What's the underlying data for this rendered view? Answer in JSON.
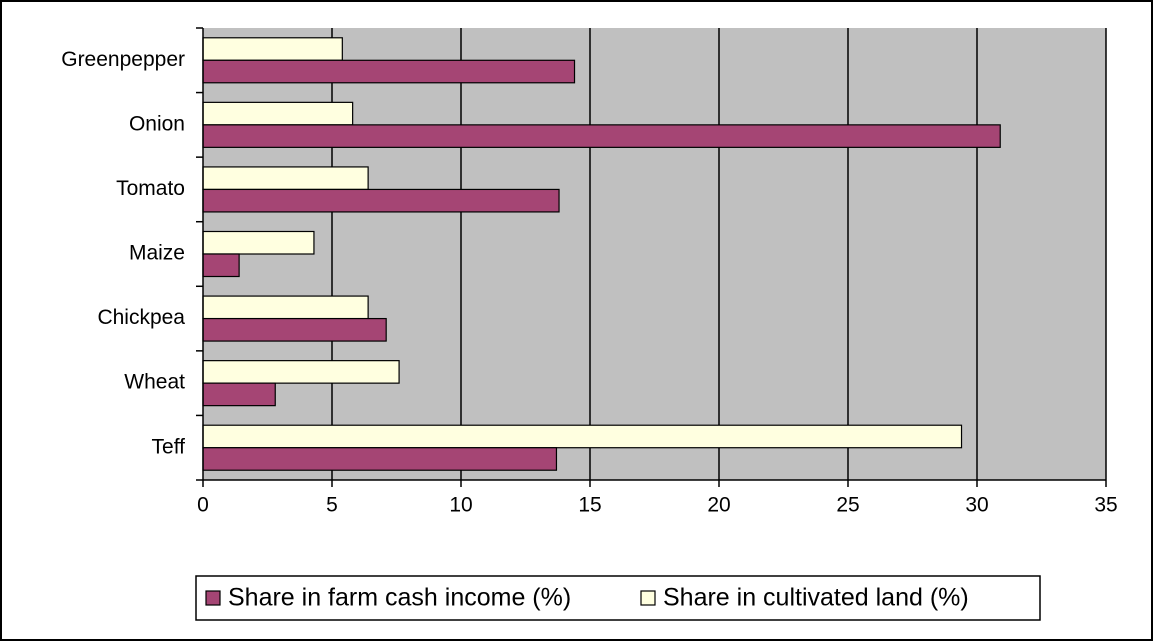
{
  "chart_data": {
    "type": "hbar",
    "categories": [
      "Greenpepper",
      "Onion",
      "Tomato",
      "Maize",
      "Chickpea",
      "Wheat",
      "Teff"
    ],
    "series": [
      {
        "name": "Share in farm cash income (%)",
        "color": "#a54574",
        "values": [
          14.4,
          30.9,
          13.8,
          1.4,
          7.1,
          2.8,
          13.7
        ]
      },
      {
        "name": "Share in cultivated land (%)",
        "color": "#ffffe0",
        "values": [
          5.4,
          5.8,
          6.4,
          4.3,
          6.4,
          7.6,
          29.4
        ]
      }
    ],
    "xlim": [
      0,
      35
    ],
    "xticks": [
      0,
      5,
      10,
      15,
      20,
      25,
      30,
      35
    ],
    "grid": true,
    "legend": "bottom"
  }
}
